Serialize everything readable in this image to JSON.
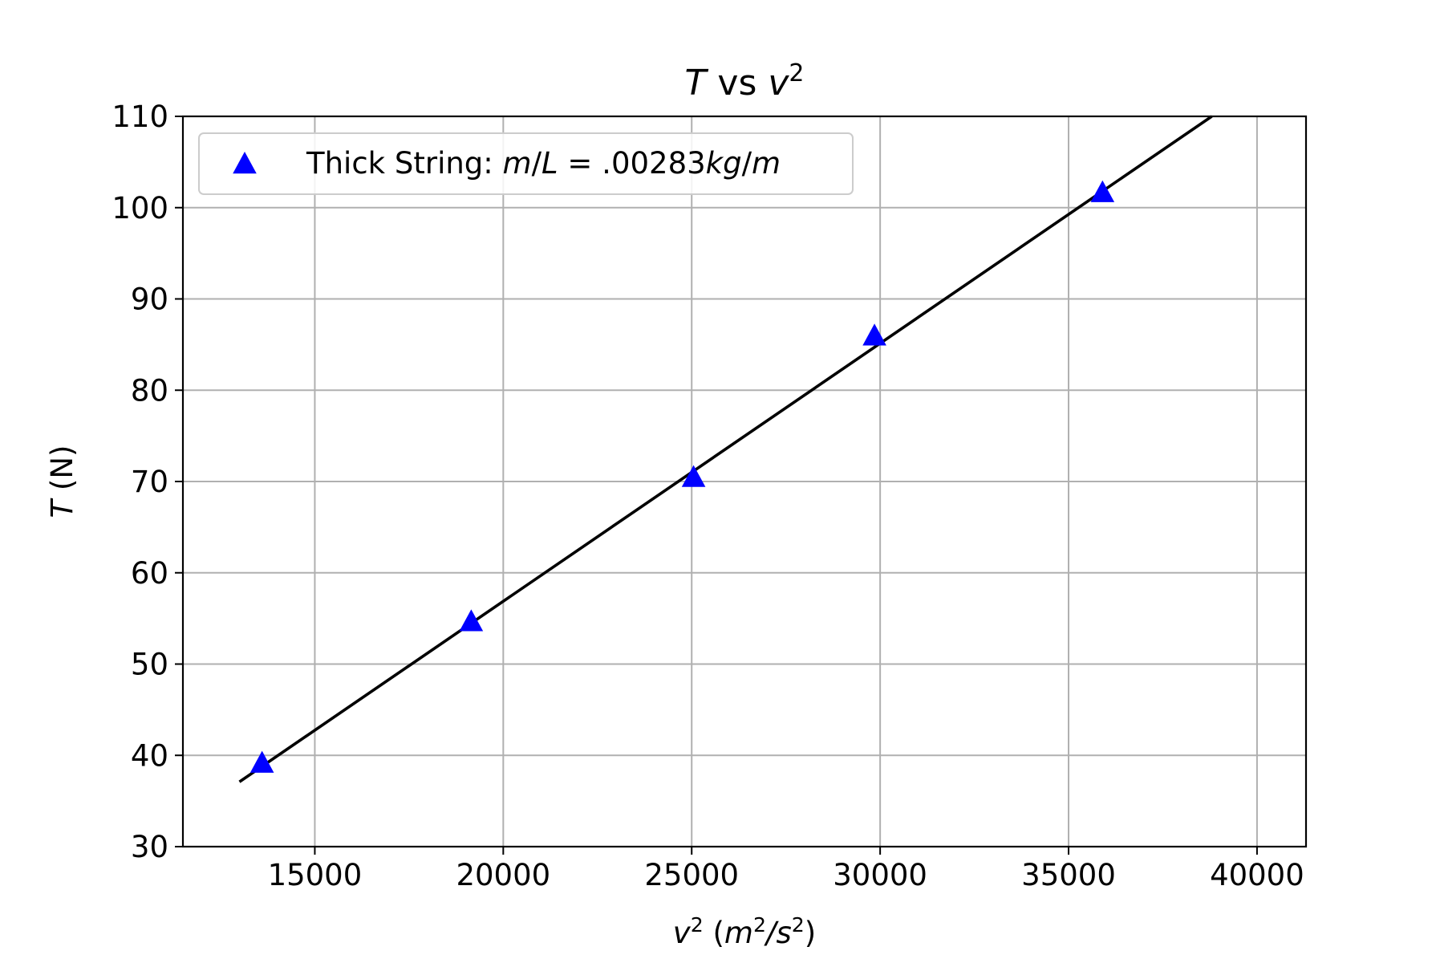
{
  "chart_data": {
    "type": "scatter",
    "title": {
      "parts": [
        {
          "text": "T",
          "style": "italic"
        },
        {
          "text": " vs ",
          "style": "normal"
        },
        {
          "text": "v",
          "style": "italic"
        },
        {
          "text": "2",
          "style": "sup"
        }
      ]
    },
    "xlabel": {
      "parts": [
        {
          "text": "v",
          "style": "italic"
        },
        {
          "text": "2",
          "style": "sup"
        },
        {
          "text": " (",
          "style": "normal"
        },
        {
          "text": "m",
          "style": "italic"
        },
        {
          "text": "2",
          "style": "sup"
        },
        {
          "text": "/",
          "style": "italic"
        },
        {
          "text": "s",
          "style": "italic"
        },
        {
          "text": "2",
          "style": "sup"
        },
        {
          "text": ")",
          "style": "normal"
        }
      ]
    },
    "ylabel": {
      "parts": [
        {
          "text": "T",
          "style": "italic"
        },
        {
          "text": " (N)",
          "style": "normal"
        }
      ]
    },
    "xlim": [
      11500,
      41300
    ],
    "ylim": [
      30,
      110
    ],
    "xticks": [
      15000,
      20000,
      25000,
      30000,
      35000,
      40000
    ],
    "yticks": [
      30,
      40,
      50,
      60,
      70,
      80,
      90,
      100,
      110
    ],
    "grid": true,
    "legend_position": "upper-left",
    "series": [
      {
        "name": "Thick String: m/L = .00283kg/m",
        "legend_parts": [
          {
            "text": "Thick String: ",
            "style": "normal"
          },
          {
            "text": "m",
            "style": "italic"
          },
          {
            "text": "/",
            "style": "normal"
          },
          {
            "text": "L",
            "style": "italic"
          },
          {
            "text": " = .00283",
            "style": "normal"
          },
          {
            "text": "kg",
            "style": "italic"
          },
          {
            "text": "/",
            "style": "normal"
          },
          {
            "text": "m",
            "style": "italic"
          }
        ],
        "marker": "triangle",
        "color": "#0000ff",
        "points": [
          {
            "x": 13600,
            "y": 39
          },
          {
            "x": 19150,
            "y": 54.5
          },
          {
            "x": 25050,
            "y": 70.3
          },
          {
            "x": 29850,
            "y": 85.8
          },
          {
            "x": 35900,
            "y": 101.5
          }
        ]
      }
    ],
    "fit_line": {
      "color": "#000000",
      "x": [
        13000,
        38800
      ],
      "y": [
        37.1,
        110
      ]
    }
  }
}
